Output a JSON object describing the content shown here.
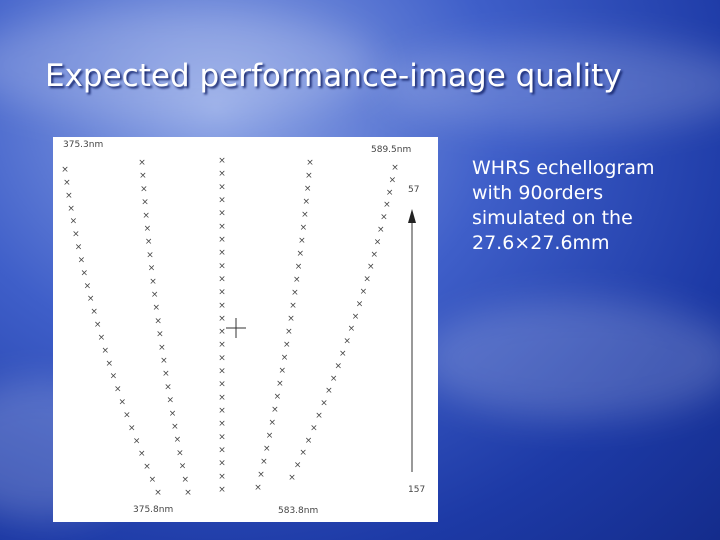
{
  "header": {
    "title": "Expected performance-image quality"
  },
  "caption": {
    "lines": [
      "WHRS echellogram",
      "with 90orders",
      "simulated on the",
      "27.6×27.6mm"
    ]
  },
  "figure": {
    "labels": {
      "top_left": "375.3nm",
      "top_right": "589.5nm",
      "bottom_left": "375.8nm",
      "bottom_center": "583.8nm",
      "right_top": "57",
      "right_bottom": "157"
    }
  }
}
